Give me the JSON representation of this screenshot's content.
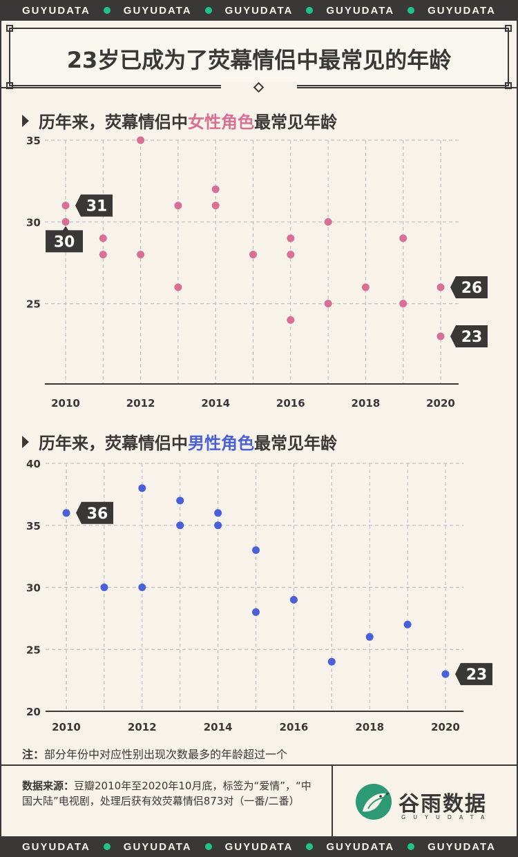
{
  "brand_band": {
    "words": [
      "GUYUDATA",
      "GUYUDATA",
      "GUYUDATA",
      "GUYUDATA",
      "GUYUDATA"
    ]
  },
  "title": "23岁已成为了荧幕情侣中最常见的年龄",
  "section1": {
    "prefix": "历年来，荧幕情侣中",
    "highlight": "女性角色",
    "suffix": "最常见年龄"
  },
  "section2": {
    "prefix": "历年来，荧幕情侣中",
    "highlight": "男性角色",
    "suffix": "最常见年龄"
  },
  "note": {
    "label": "注：",
    "text": "部分年份中对应性别出现次数最多的年龄超过一个"
  },
  "source": {
    "label": "数据来源：",
    "text": "豆瓣2010年至2020年10月底，标签为“爱情”，“中国大陆”电视剧，处理后获有效荧幕情侣873对（一番/二番）"
  },
  "logo": {
    "name": "谷雨数据",
    "sub": "GUYUDATA"
  },
  "colors": {
    "female": "#d86f94",
    "male": "#4a60d8",
    "ink": "#3a3836",
    "bg": "#f7f3ea",
    "accent": "#1fc48a"
  },
  "chart_data": [
    {
      "type": "scatter",
      "title": "历年来，荧幕情侣中女性角色最常见年龄",
      "x_ticks": [
        "2010",
        "2012",
        "2014",
        "2016",
        "2018",
        "2020"
      ],
      "y_ticks": [
        "25",
        "30",
        "35"
      ],
      "xlim": [
        2010,
        2020
      ],
      "ylim": [
        20,
        35
      ],
      "grid": true,
      "points": [
        {
          "x": 2010,
          "y": 31
        },
        {
          "x": 2010,
          "y": 30
        },
        {
          "x": 2011,
          "y": 29
        },
        {
          "x": 2011,
          "y": 28
        },
        {
          "x": 2012,
          "y": 35
        },
        {
          "x": 2012,
          "y": 28
        },
        {
          "x": 2013,
          "y": 31
        },
        {
          "x": 2013,
          "y": 26
        },
        {
          "x": 2014,
          "y": 32
        },
        {
          "x": 2014,
          "y": 31
        },
        {
          "x": 2015,
          "y": 28
        },
        {
          "x": 2016,
          "y": 29
        },
        {
          "x": 2016,
          "y": 28
        },
        {
          "x": 2016,
          "y": 24
        },
        {
          "x": 2017,
          "y": 30
        },
        {
          "x": 2017,
          "y": 25
        },
        {
          "x": 2018,
          "y": 26
        },
        {
          "x": 2019,
          "y": 29
        },
        {
          "x": 2019,
          "y": 25
        },
        {
          "x": 2020,
          "y": 26
        },
        {
          "x": 2020,
          "y": 23
        }
      ],
      "callouts": [
        {
          "x": 2010,
          "y": 31,
          "text": "31",
          "side": "right"
        },
        {
          "x": 2010,
          "y": 30,
          "text": "30",
          "side": "below"
        },
        {
          "x": 2020,
          "y": 26,
          "text": "26",
          "side": "right"
        },
        {
          "x": 2020,
          "y": 23,
          "text": "23",
          "side": "right"
        }
      ]
    },
    {
      "type": "scatter",
      "title": "历年来，荧幕情侣中男性角色最常见年龄",
      "x_ticks": [
        "2010",
        "2012",
        "2014",
        "2016",
        "2018",
        "2020"
      ],
      "y_ticks": [
        "20",
        "25",
        "30",
        "35",
        "40"
      ],
      "xlim": [
        2010,
        2020
      ],
      "ylim": [
        20,
        40
      ],
      "grid": true,
      "points": [
        {
          "x": 2010,
          "y": 36
        },
        {
          "x": 2011,
          "y": 30
        },
        {
          "x": 2012,
          "y": 38
        },
        {
          "x": 2012,
          "y": 30
        },
        {
          "x": 2013,
          "y": 37
        },
        {
          "x": 2013,
          "y": 35
        },
        {
          "x": 2014,
          "y": 36
        },
        {
          "x": 2014,
          "y": 35
        },
        {
          "x": 2015,
          "y": 33
        },
        {
          "x": 2015,
          "y": 28
        },
        {
          "x": 2016,
          "y": 29
        },
        {
          "x": 2017,
          "y": 24
        },
        {
          "x": 2018,
          "y": 26
        },
        {
          "x": 2019,
          "y": 27
        },
        {
          "x": 2020,
          "y": 23
        }
      ],
      "callouts": [
        {
          "x": 2010,
          "y": 36,
          "text": "36",
          "side": "right"
        },
        {
          "x": 2020,
          "y": 23,
          "text": "23",
          "side": "right"
        }
      ]
    }
  ]
}
